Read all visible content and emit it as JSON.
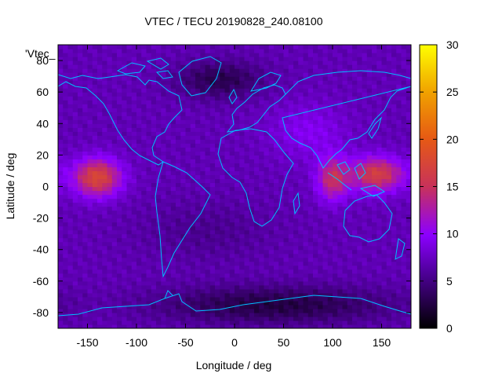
{
  "chart_data": {
    "type": "heatmap",
    "title": "VTEC / TECU 20190828_240.08100",
    "xlabel": "Longitude / deg",
    "ylabel": "Latitude / deg",
    "overlay_label": "'Vtec_",
    "xlim": [
      -180,
      180
    ],
    "ylim": [
      -90,
      90
    ],
    "x_ticks": [
      -150,
      -100,
      -50,
      0,
      50,
      100,
      150
    ],
    "y_ticks": [
      -80,
      -60,
      -40,
      -20,
      0,
      20,
      40,
      60,
      80
    ],
    "colorbar": {
      "range": [
        0,
        30
      ],
      "ticks": [
        0,
        5,
        10,
        15,
        20,
        25,
        30
      ],
      "colormap": "black-purple-red-orange-yellow"
    },
    "grid": {
      "lon_step_deg": 5,
      "lat_step_deg": 2.5
    },
    "tec_field_model": {
      "background_tecu": 7.0,
      "maxima": [
        {
          "lon": -140,
          "lat": 6,
          "peak_tecu": 10.5,
          "lon_width": 24,
          "lat_width": 12
        },
        {
          "lon": 145,
          "lat": 8,
          "peak_tecu": 9.5,
          "lon_width": 28,
          "lat_width": 11
        },
        {
          "lon": 100,
          "lat": 5,
          "peak_tecu": 7.5,
          "lon_width": 16,
          "lat_width": 14
        },
        {
          "lon": 75,
          "lat": 35,
          "peak_tecu": 2.5,
          "lon_width": 40,
          "lat_width": 18
        }
      ],
      "minima": [
        {
          "lon": -15,
          "lat": 68,
          "depth_tecu": 4.0,
          "lon_width": 45,
          "lat_width": 12
        },
        {
          "lon": 40,
          "lat": -75,
          "depth_tecu": 4.5,
          "lon_width": 120,
          "lat_width": 12
        },
        {
          "lon": -30,
          "lat": -28,
          "depth_tecu": 1.5,
          "lon_width": 70,
          "lat_width": 20
        }
      ]
    },
    "coastlines_color": "#00c0ff"
  }
}
